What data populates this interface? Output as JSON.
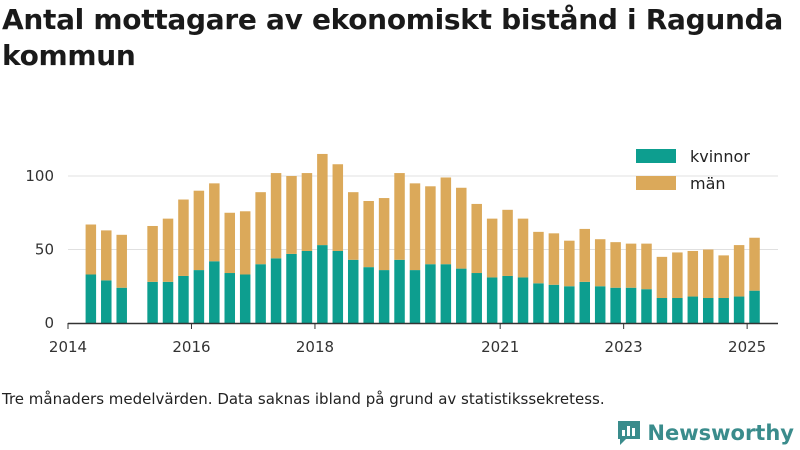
{
  "title": "Antal mottagare av ekonomiskt bistånd i Ragunda kommun",
  "footnote": "Tre månaders medelvärden. Data saknas ibland på grund av statistikssekretess.",
  "brand": "Newsworthy",
  "colors": {
    "kvinnor": "#0d9e8f",
    "man": "#dba95a",
    "axis": "#333333",
    "grid": "#e0e0e0",
    "brand": "#3a8c8c"
  },
  "chart_data": {
    "type": "bar",
    "stacked": true,
    "title": "Antal mottagare av ekonomiskt bistånd i Ragunda kommun",
    "xlabel": "",
    "ylabel": "",
    "ylim": [
      0,
      120
    ],
    "yticks": [
      0,
      50,
      100
    ],
    "grid": true,
    "legend_position": "top-right",
    "xlim": [
      2014.0,
      2025.5
    ],
    "xticks": [
      2014,
      2016,
      2018,
      2021,
      2023,
      2025
    ],
    "x": [
      2014.37,
      2014.62,
      2014.87,
      2015.37,
      2015.62,
      2015.87,
      2016.12,
      2016.37,
      2016.62,
      2016.87,
      2017.12,
      2017.37,
      2017.62,
      2017.87,
      2018.12,
      2018.37,
      2018.62,
      2018.87,
      2019.12,
      2019.37,
      2019.62,
      2019.87,
      2020.12,
      2020.37,
      2020.62,
      2020.87,
      2021.12,
      2021.37,
      2021.62,
      2021.87,
      2022.12,
      2022.37,
      2022.62,
      2022.87,
      2023.12,
      2023.37,
      2023.62,
      2023.87,
      2024.12,
      2024.37,
      2024.62,
      2024.87,
      2025.12
    ],
    "series": [
      {
        "name": "kvinnor",
        "values": [
          33,
          29,
          24,
          28,
          28,
          32,
          36,
          42,
          34,
          33,
          40,
          44,
          47,
          49,
          53,
          49,
          43,
          38,
          36,
          43,
          36,
          40,
          40,
          37,
          34,
          31,
          32,
          31,
          27,
          26,
          25,
          28,
          25,
          24,
          24,
          23,
          17,
          17,
          18,
          17,
          17,
          18,
          22
        ]
      },
      {
        "name": "män",
        "values": [
          34,
          34,
          36,
          38,
          43,
          52,
          54,
          53,
          41,
          43,
          49,
          58,
          53,
          53,
          62,
          59,
          46,
          45,
          49,
          59,
          59,
          53,
          59,
          55,
          47,
          40,
          45,
          40,
          35,
          35,
          31,
          36,
          32,
          31,
          30,
          31,
          28,
          31,
          31,
          33,
          29,
          35,
          36
        ]
      }
    ]
  }
}
